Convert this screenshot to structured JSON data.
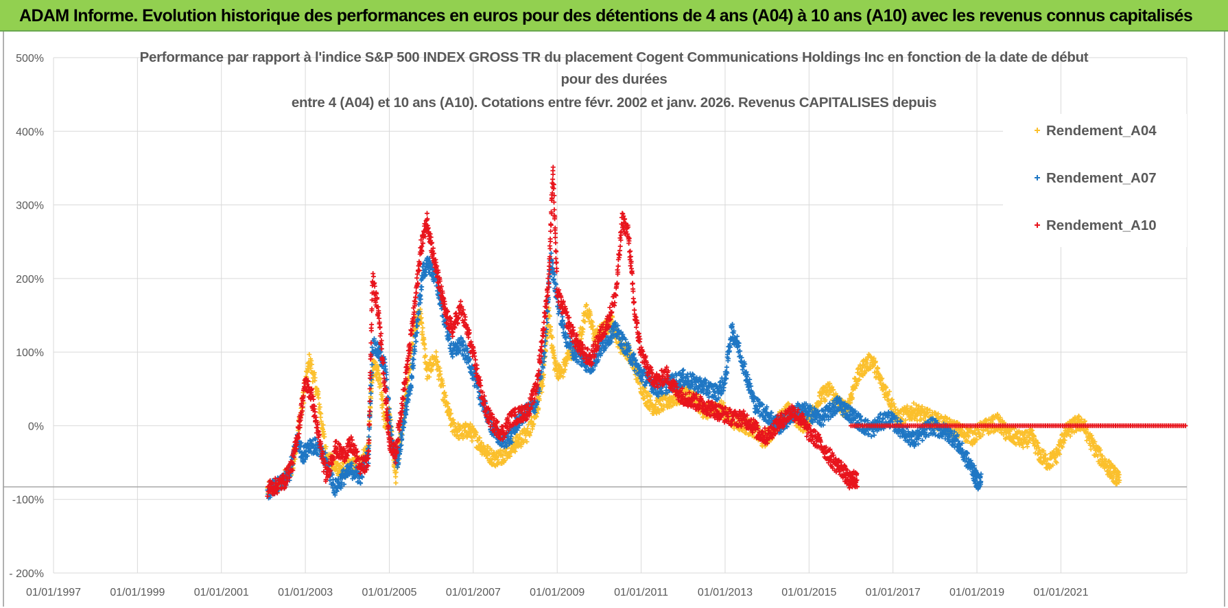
{
  "header": {
    "banner": "ADAM Informe. Evolution historique des performances en euros pour des détentions de 4 ans (A04) à 10 ans (A10) avec les revenus connus capitalisés"
  },
  "colors": {
    "banner_bg": "#92d050",
    "A04": "#fbc02d",
    "A07": "#1f77c4",
    "A10": "#e8141c",
    "grid": "#d9d9d9",
    "text": "#595959"
  },
  "chart_data": {
    "type": "scatter",
    "title": "Performance par rapport à l'indice S&P 500 INDEX GROSS TR  du placement Cogent Communications Holdings Inc en fonction de la date de début",
    "title_lines": [
      "Performance par rapport à l'indice S&P 500 INDEX GROSS TR  du placement Cogent Communications Holdings Inc en fonction de la date de début",
      "pour des durées",
      "entre 4 (A04) et 10 ans (A10).  Cotations entre févr. 2002 et janv. 2026. Revenus CAPITALISES depuis"
    ],
    "xlabel": "",
    "ylabel": "",
    "x_range": [
      1997.0,
      2024.0
    ],
    "ylim": [
      -200,
      500
    ],
    "x_ticks": [
      {
        "value": 1997,
        "label": "01/01/1997"
      },
      {
        "value": 1999,
        "label": "01/01/1999"
      },
      {
        "value": 2001,
        "label": "01/01/2001"
      },
      {
        "value": 2003,
        "label": "01/01/2003"
      },
      {
        "value": 2005,
        "label": "01/01/2005"
      },
      {
        "value": 2007,
        "label": "01/01/2007"
      },
      {
        "value": 2009,
        "label": "01/01/2009"
      },
      {
        "value": 2011,
        "label": "01/01/2011"
      },
      {
        "value": 2013,
        "label": "01/01/2013"
      },
      {
        "value": 2015,
        "label": "01/01/2015"
      },
      {
        "value": 2017,
        "label": "01/01/2017"
      },
      {
        "value": 2019,
        "label": "01/01/2019"
      },
      {
        "value": 2021,
        "label": "01/01/2021"
      }
    ],
    "y_ticks": [
      {
        "value": 500,
        "label": "500%"
      },
      {
        "value": 400,
        "label": "400%"
      },
      {
        "value": 300,
        "label": "300%"
      },
      {
        "value": 200,
        "label": "200%"
      },
      {
        "value": 100,
        "label": "100%"
      },
      {
        "value": 0,
        "label": "0%"
      },
      {
        "value": -100,
        "label": "-100%"
      },
      {
        "value": -200,
        "label": "- 200%"
      }
    ],
    "reference_line": -83,
    "legend_position": "top-right",
    "series": [
      {
        "name": "Rendement_A04",
        "key": "A04",
        "x": [
          2002.1,
          2002.4,
          2002.7,
          2002.9,
          2003.1,
          2003.3,
          2003.5,
          2003.7,
          2003.9,
          2004.1,
          2004.3,
          2004.5,
          2004.6,
          2004.75,
          2004.9,
          2005.0,
          2005.15,
          2005.3,
          2005.45,
          2005.6,
          2005.75,
          2005.9,
          2006.1,
          2006.3,
          2006.5,
          2006.7,
          2006.9,
          2007.1,
          2007.3,
          2007.5,
          2007.7,
          2007.9,
          2008.1,
          2008.3,
          2008.5,
          2008.65,
          2008.8,
          2008.95,
          2009.1,
          2009.3,
          2009.5,
          2009.7,
          2009.9,
          2010.1,
          2010.3,
          2010.5,
          2010.7,
          2010.9,
          2011.1,
          2011.3,
          2011.5,
          2011.7,
          2011.9,
          2012.1,
          2012.3,
          2012.5,
          2012.7,
          2012.9,
          2013.1,
          2013.3,
          2013.5,
          2013.7,
          2013.9,
          2014.1,
          2014.3,
          2014.5,
          2014.7,
          2014.9,
          2015.1,
          2015.3,
          2015.5,
          2015.7,
          2015.9,
          2016.1,
          2016.3,
          2016.5,
          2016.7,
          2016.9,
          2017.1,
          2017.3,
          2017.5,
          2017.7,
          2017.9,
          2018.1,
          2018.3,
          2018.5,
          2018.7,
          2018.9,
          2019.1,
          2019.3,
          2019.5,
          2019.7,
          2019.9,
          2020.1,
          2020.3,
          2020.5,
          2020.7,
          2020.9,
          2021.1,
          2021.3,
          2021.5,
          2021.7,
          2021.9,
          2022.1,
          2022.25,
          2022.4
        ],
        "y": [
          -88,
          -80,
          -55,
          20,
          90,
          40,
          -40,
          -55,
          -60,
          -55,
          -50,
          -30,
          80,
          70,
          5,
          20,
          -70,
          0,
          60,
          140,
          150,
          70,
          95,
          40,
          0,
          -10,
          -5,
          -20,
          -35,
          -45,
          -40,
          -30,
          -20,
          -10,
          20,
          60,
          150,
          80,
          70,
          100,
          110,
          160,
          120,
          130,
          140,
          110,
          100,
          70,
          40,
          25,
          30,
          35,
          40,
          45,
          35,
          20,
          20,
          25,
          10,
          5,
          0,
          -5,
          -20,
          -10,
          10,
          20,
          10,
          0,
          20,
          40,
          50,
          30,
          20,
          60,
          80,
          90,
          60,
          40,
          10,
          15,
          20,
          15,
          10,
          5,
          0,
          -5,
          -10,
          -15,
          -5,
          0,
          5,
          -10,
          -15,
          -20,
          -15,
          -40,
          -50,
          -40,
          -10,
          0,
          5,
          -20,
          -40,
          -55,
          -65,
          -75
        ]
      },
      {
        "name": "Rendement_A07",
        "key": "A07",
        "x": [
          2002.1,
          2002.4,
          2002.6,
          2002.8,
          2002.95,
          2003.1,
          2003.3,
          2003.5,
          2003.7,
          2003.9,
          2004.1,
          2004.3,
          2004.5,
          2004.6,
          2004.75,
          2004.9,
          2005.05,
          2005.2,
          2005.35,
          2005.5,
          2005.65,
          2005.8,
          2005.95,
          2006.1,
          2006.3,
          2006.5,
          2006.7,
          2006.9,
          2007.1,
          2007.3,
          2007.5,
          2007.7,
          2007.9,
          2008.1,
          2008.3,
          2008.5,
          2008.7,
          2008.85,
          2009.0,
          2009.2,
          2009.4,
          2009.6,
          2009.8,
          2010.0,
          2010.2,
          2010.4,
          2010.6,
          2010.8,
          2011.0,
          2011.2,
          2011.4,
          2011.6,
          2011.8,
          2012.0,
          2012.2,
          2012.4,
          2012.6,
          2012.8,
          2013.0,
          2013.15,
          2013.3,
          2013.5,
          2013.7,
          2013.9,
          2014.1,
          2014.3,
          2014.5,
          2014.7,
          2014.9,
          2015.1,
          2015.3,
          2015.5,
          2015.7,
          2015.9,
          2016.1,
          2016.3,
          2016.5,
          2016.7,
          2016.9,
          2017.1,
          2017.3,
          2017.5,
          2017.7,
          2017.9,
          2018.1,
          2018.3,
          2018.5,
          2018.7,
          2018.9,
          2019.0,
          2019.1
        ],
        "y": [
          -88,
          -80,
          -70,
          -20,
          -40,
          -25,
          -30,
          -50,
          -85,
          -70,
          -60,
          -70,
          -40,
          110,
          100,
          80,
          -20,
          -50,
          10,
          50,
          130,
          210,
          220,
          200,
          150,
          100,
          110,
          90,
          50,
          20,
          -10,
          -20,
          -15,
          10,
          20,
          30,
          100,
          230,
          170,
          120,
          100,
          90,
          80,
          100,
          120,
          130,
          110,
          90,
          70,
          60,
          50,
          55,
          60,
          65,
          60,
          55,
          50,
          45,
          60,
          130,
          110,
          70,
          30,
          20,
          10,
          0,
          10,
          20,
          20,
          15,
          10,
          20,
          30,
          20,
          10,
          0,
          -5,
          5,
          10,
          0,
          -10,
          -20,
          -10,
          0,
          -5,
          -10,
          -20,
          -40,
          -60,
          -75,
          -75
        ]
      },
      {
        "name": "Rendement_A10",
        "key": "A10",
        "x": [
          2002.1,
          2002.3,
          2002.5,
          2002.7,
          2002.85,
          2003.0,
          2003.15,
          2003.3,
          2003.5,
          2003.7,
          2003.9,
          2004.1,
          2004.3,
          2004.5,
          2004.6,
          2004.75,
          2004.9,
          2005.0,
          2005.15,
          2005.3,
          2005.45,
          2005.6,
          2005.75,
          2005.9,
          2006.05,
          2006.2,
          2006.35,
          2006.5,
          2006.7,
          2006.9,
          2007.1,
          2007.3,
          2007.5,
          2007.7,
          2007.9,
          2008.1,
          2008.3,
          2008.5,
          2008.65,
          2008.8,
          2008.9,
          2009.0,
          2009.2,
          2009.4,
          2009.6,
          2009.8,
          2010.0,
          2010.2,
          2010.4,
          2010.55,
          2010.7,
          2010.85,
          2011.0,
          2011.2,
          2011.4,
          2011.6,
          2011.8,
          2012.0,
          2012.2,
          2012.4,
          2012.6,
          2012.8,
          2013.0,
          2013.2,
          2013.4,
          2013.6,
          2013.8,
          2014.0,
          2014.2,
          2014.4,
          2014.6,
          2014.8,
          2015.0,
          2015.2,
          2015.4,
          2015.6,
          2015.8,
          2015.95,
          2016.05,
          2016.15
        ],
        "y": [
          -85,
          -82,
          -75,
          -50,
          0,
          60,
          40,
          -10,
          -70,
          -30,
          -40,
          -25,
          -55,
          -50,
          200,
          150,
          50,
          -20,
          -40,
          30,
          90,
          160,
          240,
          280,
          230,
          190,
          150,
          130,
          160,
          120,
          70,
          20,
          0,
          -10,
          10,
          15,
          20,
          50,
          120,
          200,
          350,
          180,
          150,
          120,
          100,
          90,
          120,
          140,
          180,
          280,
          260,
          150,
          100,
          70,
          60,
          70,
          50,
          40,
          35,
          30,
          25,
          20,
          15,
          10,
          10,
          5,
          -10,
          -15,
          0,
          10,
          20,
          10,
          -10,
          -20,
          -35,
          -50,
          -60,
          -75,
          -72,
          -75
        ]
      }
    ],
    "flat_segment": {
      "series": "A10",
      "x_start": 2016.0,
      "x_end": 2024.0,
      "y": 0
    }
  }
}
